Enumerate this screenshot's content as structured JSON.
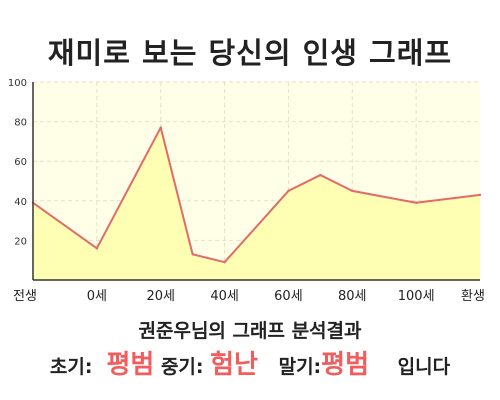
{
  "title": "재미로 보는 당신의 인생 그래프",
  "chart_data": {
    "type": "area",
    "categories": [
      "전생",
      "0세",
      "20세",
      "40세",
      "60세",
      "80세",
      "100세",
      "환생"
    ],
    "x": [
      -20,
      0,
      20,
      30,
      40,
      60,
      70,
      80,
      100,
      120
    ],
    "values": [
      39,
      16,
      77,
      13,
      9,
      45,
      53,
      45,
      39,
      43
    ],
    "xlim": [
      -20,
      120
    ],
    "ylim": [
      0,
      100
    ],
    "yticks": [
      20,
      40,
      60,
      80,
      100
    ],
    "grid": true,
    "colors": {
      "line": "#e36a6a",
      "fill": "#ffffb4",
      "plot_bg": "#ffffe8",
      "grid": "#e2e2c4",
      "axis": "#333333"
    }
  },
  "summary": "권준우님의 그래프 분석결과",
  "stages": {
    "early_label": "초기:",
    "early_value": "평범",
    "middle_label": "중기:",
    "middle_value": "험난",
    "late_label": "말기:",
    "late_value": "평범",
    "suffix": "입니다"
  }
}
